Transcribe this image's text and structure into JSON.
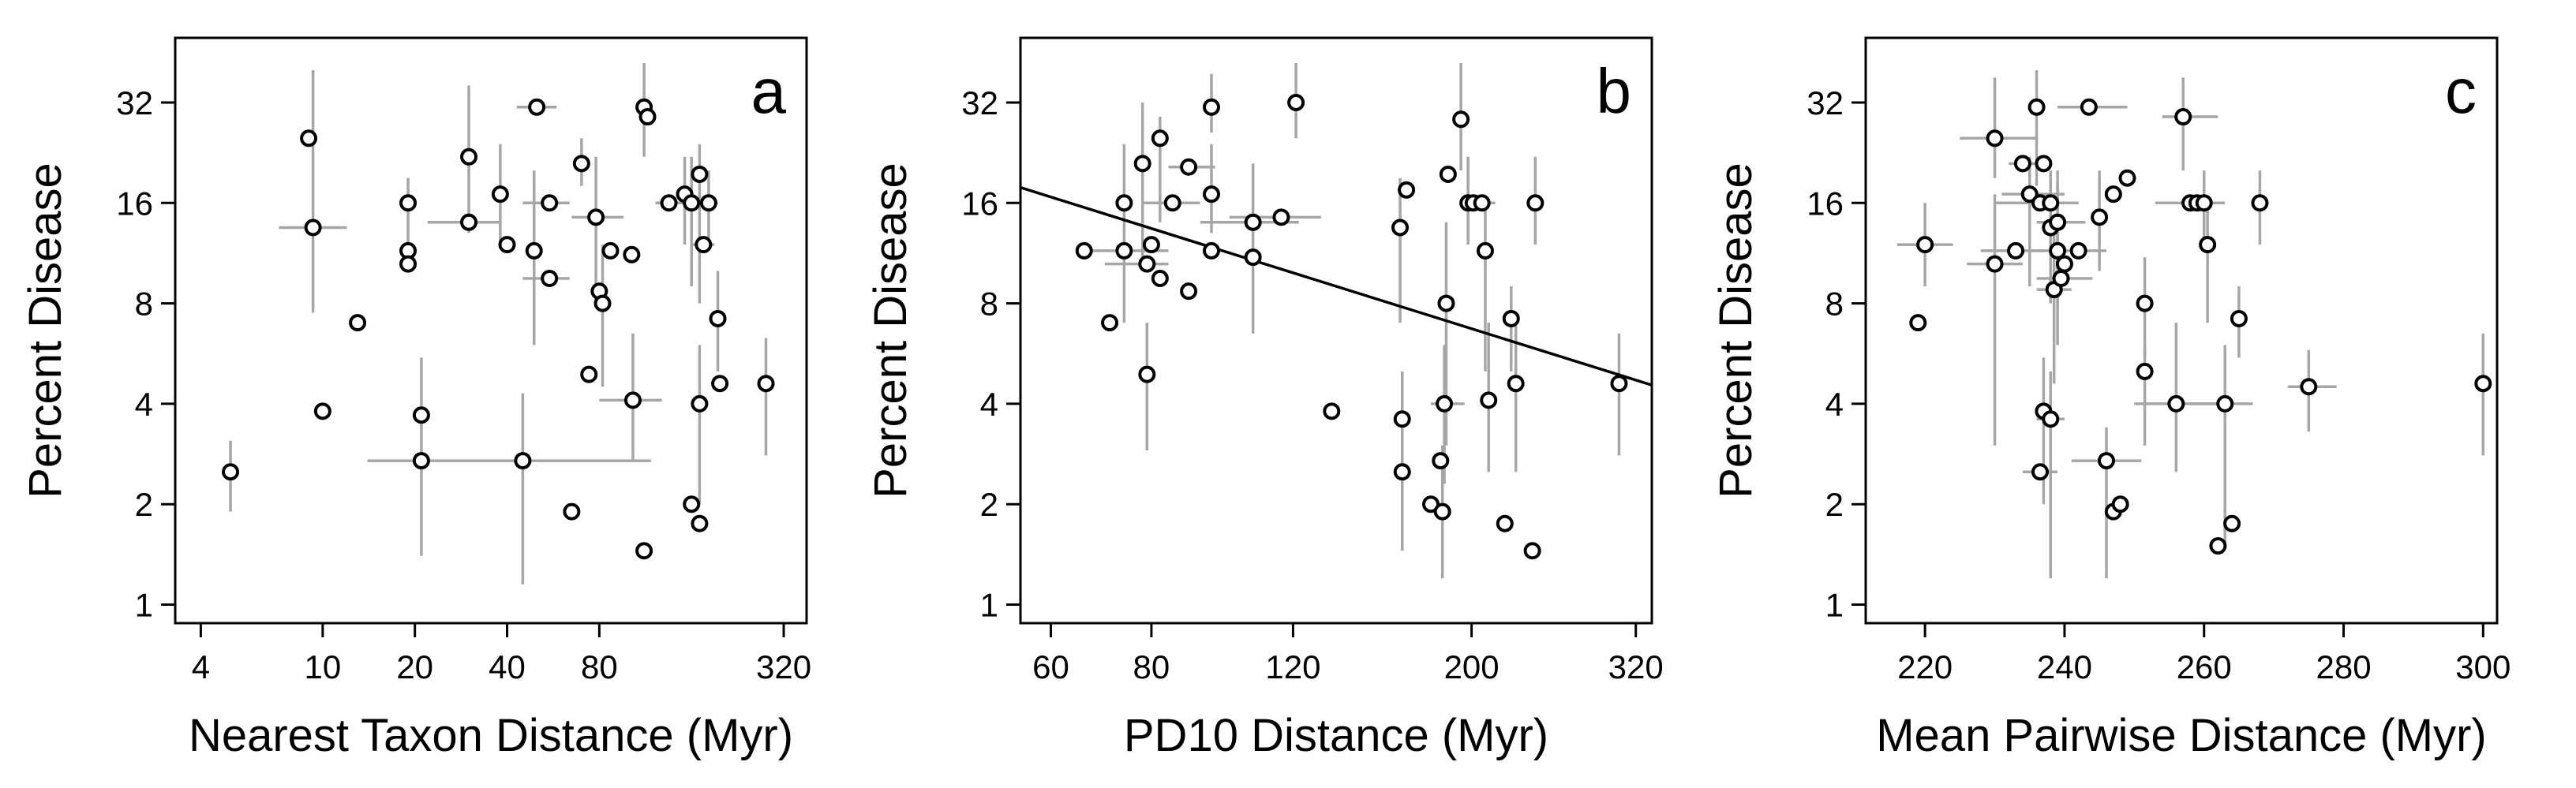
{
  "chart_data": [
    {
      "type": "scatter",
      "panel": "a",
      "xlabel": "Nearest Taxon Distance (Myr)",
      "ylabel": "Percent Disease",
      "xscale": "log",
      "yscale": "log",
      "xlim": [
        3.3,
        380
      ],
      "ylim": [
        0.88,
        50
      ],
      "xticks": [
        4,
        10,
        20,
        40,
        80,
        320
      ],
      "xticklabels": [
        "4",
        "10",
        "20",
        "40",
        "80",
        "320"
      ],
      "yticks": [
        1,
        2,
        4,
        8,
        16,
        32
      ],
      "yticklabels": [
        "1",
        "2",
        "4",
        "8",
        "16",
        "32"
      ],
      "points": [
        {
          "x": 5,
          "y": 2.5,
          "ylo": 1.9,
          "yhi": 3.1
        },
        {
          "x": 9,
          "y": 25
        },
        {
          "x": 9.3,
          "y": 13.5,
          "xlo": 7.2,
          "xhi": 12,
          "ylo": 7.5,
          "yhi": 40
        },
        {
          "x": 10,
          "y": 3.8
        },
        {
          "x": 13,
          "y": 7
        },
        {
          "x": 19,
          "y": 16,
          "ylo": 10,
          "yhi": 19
        },
        {
          "x": 19,
          "y": 11.5
        },
        {
          "x": 19,
          "y": 10.5
        },
        {
          "x": 21,
          "y": 3.7,
          "ylo": 1.4,
          "yhi": 5.5
        },
        {
          "x": 21,
          "y": 2.7,
          "xlo": 14,
          "xhi": 118
        },
        {
          "x": 30,
          "y": 14,
          "xlo": 22,
          "xhi": 38
        },
        {
          "x": 30,
          "y": 22,
          "ylo": 13,
          "yhi": 36
        },
        {
          "x": 38,
          "y": 17,
          "ylo": 12,
          "yhi": 24
        },
        {
          "x": 40,
          "y": 12
        },
        {
          "x": 45,
          "y": 2.7,
          "ylo": 1.15,
          "yhi": 4.3
        },
        {
          "x": 49,
          "y": 11.5,
          "ylo": 6,
          "yhi": 20
        },
        {
          "x": 50,
          "y": 31,
          "xlo": 43,
          "xhi": 58
        },
        {
          "x": 55,
          "y": 16,
          "xlo": 45,
          "xhi": 64
        },
        {
          "x": 55,
          "y": 9.5,
          "xlo": 45,
          "xhi": 64
        },
        {
          "x": 65,
          "y": 1.9
        },
        {
          "x": 70,
          "y": 21,
          "ylo": 18,
          "yhi": 25
        },
        {
          "x": 74,
          "y": 4.9
        },
        {
          "x": 78,
          "y": 14.5,
          "xlo": 65,
          "xhi": 96,
          "ylo": 8,
          "yhi": 22
        },
        {
          "x": 80,
          "y": 8.7
        },
        {
          "x": 82,
          "y": 8,
          "ylo": 4.5,
          "yhi": 12
        },
        {
          "x": 87,
          "y": 11.5
        },
        {
          "x": 102,
          "y": 11.2
        },
        {
          "x": 103,
          "y": 4.1,
          "xlo": 80,
          "xhi": 128,
          "ylo": 2.7,
          "yhi": 6.5
        },
        {
          "x": 112,
          "y": 1.45
        },
        {
          "x": 112,
          "y": 31,
          "ylo": 22,
          "yhi": 42
        },
        {
          "x": 115,
          "y": 29
        },
        {
          "x": 135,
          "y": 16,
          "xlo": 122,
          "xhi": 148
        },
        {
          "x": 152,
          "y": 17,
          "ylo": 12,
          "yhi": 22
        },
        {
          "x": 160,
          "y": 16,
          "xlo": 140,
          "xhi": 180,
          "ylo": 9,
          "yhi": 22
        },
        {
          "x": 160,
          "y": 2
        },
        {
          "x": 170,
          "y": 19.5,
          "ylo": 8,
          "yhi": 24
        },
        {
          "x": 170,
          "y": 1.75
        },
        {
          "x": 170,
          "y": 4,
          "ylo": 2,
          "yhi": 6
        },
        {
          "x": 175,
          "y": 12,
          "xlo": 160,
          "xhi": 190
        },
        {
          "x": 182,
          "y": 16,
          "xlo": 168,
          "xhi": 195,
          "ylo": 12,
          "yhi": 20
        },
        {
          "x": 195,
          "y": 7.2,
          "ylo": 5,
          "yhi": 10
        },
        {
          "x": 198,
          "y": 4.6
        },
        {
          "x": 280,
          "y": 4.6,
          "ylo": 2.8,
          "yhi": 6.3
        }
      ]
    },
    {
      "type": "scatter",
      "panel": "b",
      "xlabel": "PD10 Distance (Myr)",
      "ylabel": "Percent Disease",
      "xscale": "log",
      "yscale": "log",
      "xlim": [
        55,
        335
      ],
      "ylim": [
        0.88,
        50
      ],
      "xticks": [
        60,
        80,
        120,
        200,
        320
      ],
      "xticklabels": [
        "60",
        "80",
        "120",
        "200",
        "320"
      ],
      "yticks": [
        1,
        2,
        4,
        8,
        16,
        32
      ],
      "yticklabels": [
        "1",
        "2",
        "4",
        "8",
        "16",
        "32"
      ],
      "regression_line": {
        "x": [
          55,
          335
        ],
        "y": [
          17.8,
          4.55
        ]
      },
      "points": [
        {
          "x": 66,
          "y": 11.5
        },
        {
          "x": 71,
          "y": 7
        },
        {
          "x": 74,
          "y": 16,
          "ylo": 7,
          "yhi": 24
        },
        {
          "x": 74,
          "y": 11.5,
          "xlo": 66,
          "xhi": 84
        },
        {
          "x": 78,
          "y": 21,
          "ylo": 10,
          "yhi": 32
        },
        {
          "x": 79,
          "y": 10.5,
          "xlo": 70,
          "xhi": 84
        },
        {
          "x": 79,
          "y": 4.9,
          "ylo": 2.9,
          "yhi": 7
        },
        {
          "x": 80,
          "y": 12
        },
        {
          "x": 82,
          "y": 25,
          "ylo": 14,
          "yhi": 29
        },
        {
          "x": 82,
          "y": 9.5
        },
        {
          "x": 85,
          "y": 16,
          "xlo": 78,
          "xhi": 92
        },
        {
          "x": 89,
          "y": 20.5,
          "xlo": 84,
          "xhi": 96
        },
        {
          "x": 89,
          "y": 8.7
        },
        {
          "x": 95,
          "y": 31,
          "ylo": 26,
          "yhi": 39
        },
        {
          "x": 95,
          "y": 17,
          "ylo": 13,
          "yhi": 24
        },
        {
          "x": 95,
          "y": 11.5
        },
        {
          "x": 107,
          "y": 14,
          "xlo": 92,
          "xhi": 122,
          "ylo": 6.5,
          "yhi": 21
        },
        {
          "x": 107,
          "y": 11
        },
        {
          "x": 116,
          "y": 14.5,
          "xlo": 100,
          "xhi": 130
        },
        {
          "x": 121,
          "y": 32,
          "ylo": 25,
          "yhi": 42
        },
        {
          "x": 134,
          "y": 3.8
        },
        {
          "x": 163,
          "y": 13.5,
          "ylo": 7,
          "yhi": 19
        },
        {
          "x": 166,
          "y": 17.5
        },
        {
          "x": 164,
          "y": 3.6,
          "ylo": 2.1,
          "yhi": 5
        },
        {
          "x": 164,
          "y": 2.5,
          "ylo": 1.45,
          "yhi": 3.5
        },
        {
          "x": 178,
          "y": 2
        },
        {
          "x": 183,
          "y": 2.7
        },
        {
          "x": 184,
          "y": 1.9,
          "ylo": 1.2,
          "yhi": 3
        },
        {
          "x": 185,
          "y": 4,
          "xlo": 178,
          "xhi": 196,
          "ylo": 2.3,
          "yhi": 6
        },
        {
          "x": 186,
          "y": 8,
          "ylo": 3,
          "yhi": 14
        },
        {
          "x": 187,
          "y": 19.5
        },
        {
          "x": 194,
          "y": 28.5,
          "ylo": 20,
          "yhi": 42
        },
        {
          "x": 198,
          "y": 16,
          "ylo": 12,
          "yhi": 22
        },
        {
          "x": 201,
          "y": 16
        },
        {
          "x": 206,
          "y": 16,
          "xlo": 198,
          "xhi": 214
        },
        {
          "x": 208,
          "y": 11.5,
          "ylo": 5,
          "yhi": 16
        },
        {
          "x": 210,
          "y": 4.1,
          "ylo": 2.5,
          "yhi": 7
        },
        {
          "x": 220,
          "y": 1.75
        },
        {
          "x": 224,
          "y": 7.2,
          "ylo": 5,
          "yhi": 9
        },
        {
          "x": 227,
          "y": 4.6,
          "ylo": 2.5,
          "yhi": 7
        },
        {
          "x": 238,
          "y": 1.45
        },
        {
          "x": 240,
          "y": 16,
          "ylo": 12,
          "yhi": 22
        },
        {
          "x": 305,
          "y": 4.6,
          "ylo": 2.8,
          "yhi": 6.5
        }
      ]
    },
    {
      "type": "scatter",
      "panel": "c",
      "xlabel": "Mean Pairwise Distance (Myr)",
      "ylabel": "Percent Disease",
      "xscale": "linear",
      "yscale": "log",
      "xlim": [
        211.5,
        302
      ],
      "ylim": [
        0.88,
        50
      ],
      "xticks": [
        220,
        240,
        260,
        280,
        300
      ],
      "xticklabels": [
        "220",
        "240",
        "260",
        "280",
        "300"
      ],
      "yticks": [
        1,
        2,
        4,
        8,
        16,
        32
      ],
      "yticklabels": [
        "1",
        "2",
        "4",
        "8",
        "16",
        "32"
      ],
      "points": [
        {
          "x": 219,
          "y": 7
        },
        {
          "x": 220,
          "y": 12,
          "xlo": 216,
          "xhi": 224,
          "ylo": 9,
          "yhi": 16
        },
        {
          "x": 230,
          "y": 10.5,
          "xlo": 226,
          "xhi": 234,
          "ylo": 3,
          "yhi": 17
        },
        {
          "x": 230,
          "y": 25,
          "xlo": 225,
          "xhi": 236,
          "ylo": 19,
          "yhi": 38
        },
        {
          "x": 233,
          "y": 11.5,
          "xlo": 228,
          "xhi": 237
        },
        {
          "x": 234,
          "y": 21,
          "xlo": 232,
          "xhi": 238
        },
        {
          "x": 235,
          "y": 17,
          "xlo": 231,
          "xhi": 240,
          "ylo": 9,
          "yhi": 22
        },
        {
          "x": 236,
          "y": 31,
          "ylo": 18,
          "yhi": 40
        },
        {
          "x": 236.5,
          "y": 16,
          "xlo": 230,
          "xhi": 242
        },
        {
          "x": 236.5,
          "y": 2.5,
          "xlo": 234,
          "xhi": 239
        },
        {
          "x": 237,
          "y": 21
        },
        {
          "x": 237,
          "y": 3.8,
          "ylo": 2,
          "yhi": 5.5
        },
        {
          "x": 238,
          "y": 3.6,
          "xlo": 236,
          "xhi": 240,
          "ylo": 1.2,
          "yhi": 5
        },
        {
          "x": 238,
          "y": 16,
          "xlo": 234,
          "xhi": 242,
          "ylo": 8,
          "yhi": 20
        },
        {
          "x": 238,
          "y": 13.5
        },
        {
          "x": 238.5,
          "y": 8.8,
          "xlo": 236,
          "xhi": 241,
          "ylo": 4.6,
          "yhi": 14
        },
        {
          "x": 239,
          "y": 11.5,
          "xlo": 235,
          "xhi": 243,
          "ylo": 6,
          "yhi": 18
        },
        {
          "x": 239,
          "y": 14,
          "xlo": 236,
          "xhi": 243,
          "ylo": 8,
          "yhi": 20
        },
        {
          "x": 239.5,
          "y": 9.5,
          "xlo": 236,
          "xhi": 244
        },
        {
          "x": 240,
          "y": 10.5
        },
        {
          "x": 242,
          "y": 11.5,
          "xlo": 238,
          "xhi": 246
        },
        {
          "x": 243.5,
          "y": 31,
          "xlo": 239,
          "xhi": 249
        },
        {
          "x": 245,
          "y": 14.5,
          "ylo": 10,
          "yhi": 20
        },
        {
          "x": 246,
          "y": 2.7,
          "xlo": 241,
          "xhi": 251,
          "ylo": 1.2,
          "yhi": 3.4
        },
        {
          "x": 247,
          "y": 1.9
        },
        {
          "x": 247,
          "y": 17
        },
        {
          "x": 248,
          "y": 2
        },
        {
          "x": 249,
          "y": 19
        },
        {
          "x": 251.5,
          "y": 8,
          "ylo": 5.5,
          "yhi": 11
        },
        {
          "x": 251.5,
          "y": 5,
          "ylo": 3,
          "yhi": 6
        },
        {
          "x": 256,
          "y": 4,
          "xlo": 250,
          "xhi": 262,
          "ylo": 2.5,
          "yhi": 7
        },
        {
          "x": 257,
          "y": 29,
          "xlo": 254,
          "xhi": 262,
          "ylo": 20,
          "yhi": 38
        },
        {
          "x": 258,
          "y": 16,
          "xlo": 253,
          "xhi": 262
        },
        {
          "x": 259,
          "y": 16
        },
        {
          "x": 260,
          "y": 16,
          "xlo": 257,
          "xhi": 263,
          "ylo": 12,
          "yhi": 20
        },
        {
          "x": 260.5,
          "y": 12,
          "ylo": 7,
          "yhi": 16
        },
        {
          "x": 262,
          "y": 1.5
        },
        {
          "x": 263,
          "y": 4,
          "xlo": 258,
          "xhi": 267,
          "ylo": 1.5,
          "yhi": 6
        },
        {
          "x": 264,
          "y": 1.75
        },
        {
          "x": 265,
          "y": 7.2,
          "ylo": 5.5,
          "yhi": 9
        },
        {
          "x": 268,
          "y": 16,
          "ylo": 12,
          "yhi": 20
        },
        {
          "x": 275,
          "y": 4.5,
          "xlo": 272,
          "xhi": 279,
          "ylo": 3.3,
          "yhi": 5.8
        },
        {
          "x": 300,
          "y": 4.6,
          "ylo": 2.8,
          "yhi": 6.5
        }
      ]
    }
  ]
}
